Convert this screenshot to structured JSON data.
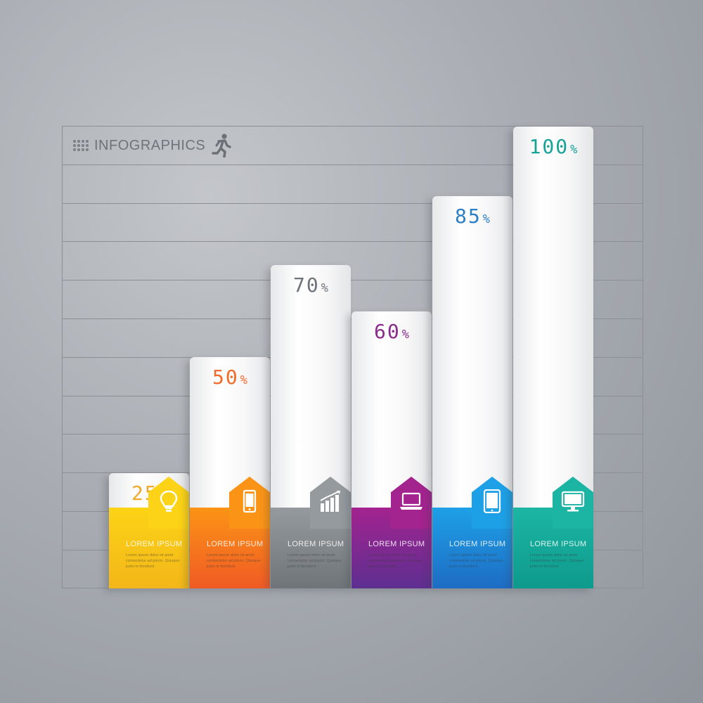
{
  "header": {
    "title": "INFOGRAPHICS",
    "icon": "running-person-icon"
  },
  "chart_data": {
    "type": "bar",
    "categories": [
      "LOREM IPSUM",
      "LOREM IPSUM",
      "LOREM IPSUM",
      "LOREM IPSUM",
      "LOREM IPSUM",
      "LOREM IPSUM"
    ],
    "values": [
      25,
      50,
      70,
      60,
      85,
      100
    ],
    "value_suffix": "%",
    "ylim": [
      0,
      100
    ],
    "grid": true,
    "bars": [
      {
        "value": 25,
        "label": "LOREM IPSUM",
        "body": "Lorem ipsum dolor sit amet consectetur ad piscin. Quisque justo in tincidunt.",
        "color": "#f3b619",
        "band_top": "#fcd316",
        "value_color": "#f0a92a",
        "icon": "lightbulb-icon"
      },
      {
        "value": 50,
        "label": "LOREM IPSUM",
        "body": "Lorem ipsum dolor sit amet consectetur ad piscin. Quisque justo in tincidunt.",
        "color": "#f05a24",
        "band_top": "#fb9416",
        "value_color": "#f36a2a",
        "icon": "smartphone-icon"
      },
      {
        "value": 70,
        "label": "LOREM IPSUM",
        "body": "Lorem ipsum dolor sit amet consectetur ad piscin. Quisque justo in tincidunt.",
        "color": "#6f7479",
        "band_top": "#959a9e",
        "value_color": "#6e737a",
        "icon": "bar-chart-icon"
      },
      {
        "value": 60,
        "label": "LOREM IPSUM",
        "body": "Lorem ipsum dolor sit amet consectetur ad piscin. Quisque justo in tincidunt.",
        "color": "#5d2f91",
        "band_top": "#a3238f",
        "value_color": "#8a2a8c",
        "icon": "laptop-icon"
      },
      {
        "value": 85,
        "label": "LOREM IPSUM",
        "body": "Lorem ipsum dolor sit amet consectetur ad piscin. Quisque justo in tincidunt.",
        "color": "#1e6cc4",
        "band_top": "#1ea0e6",
        "value_color": "#2b7fc5",
        "icon": "tablet-icon"
      },
      {
        "value": 100,
        "label": "LOREM IPSUM",
        "body": "Lorem ipsum dolor sit amet consectetur ad piscin. Quisque justo in tincidunt.",
        "color": "#0e9a8c",
        "band_top": "#1cb5a4",
        "value_color": "#16a397",
        "icon": "monitor-icon"
      }
    ]
  }
}
